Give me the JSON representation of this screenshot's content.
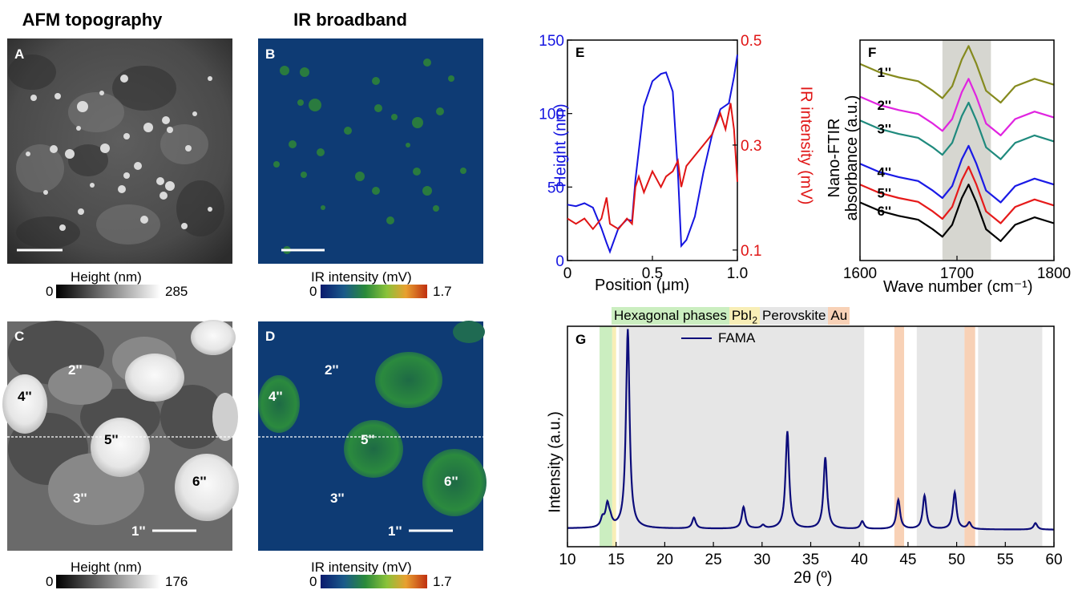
{
  "titles": {
    "afm": "AFM topography",
    "ir": "IR broadband"
  },
  "panels": {
    "a": "A",
    "b": "B",
    "c": "C",
    "d": "D",
    "e": "E",
    "f": "F",
    "g": "G"
  },
  "colorbars": {
    "a": {
      "title": "Height (nm)",
      "min": "0",
      "max": "285"
    },
    "b": {
      "title": "IR intensity (mV)",
      "min": "0",
      "max": "1.7"
    },
    "c": {
      "title": "Height (nm)",
      "min": "0",
      "max": "176"
    },
    "d": {
      "title": "IR intensity (mV)",
      "min": "0",
      "max": "1.7"
    }
  },
  "grain_labels": [
    "1''",
    "2''",
    "3''",
    "4''",
    "5''",
    "6''"
  ],
  "colors": {
    "height": "#1515e0",
    "ir": "#e01515",
    "fama": "#0c0c7a",
    "ir_map_bg": "#0d3d6d",
    "ir_map_grain": "#2d8a3d"
  },
  "chart_data": [
    {
      "panel": "E",
      "type": "line",
      "xlabel": "Position (μm)",
      "ylabel": "Height (nm)",
      "y2label": "IR intensity (mV)",
      "xlim": [
        0,
        1.0
      ],
      "ylim": [
        0,
        150
      ],
      "y2lim": [
        0.08,
        0.5
      ],
      "xticks": [
        "0",
        "0.5",
        "1.0"
      ],
      "yticks": [
        "0",
        "50",
        "100",
        "150"
      ],
      "y2ticks": [
        "0.1",
        "0.3",
        "0.5"
      ],
      "series": [
        {
          "axis": "left",
          "color": "#1515e0",
          "x": [
            0,
            0.05,
            0.1,
            0.15,
            0.2,
            0.23,
            0.25,
            0.3,
            0.35,
            0.38,
            0.4,
            0.45,
            0.5,
            0.55,
            0.58,
            0.62,
            0.65,
            0.67,
            0.7,
            0.75,
            0.8,
            0.85,
            0.9,
            0.95,
            0.98,
            1.0
          ],
          "y": [
            38,
            37,
            39,
            36,
            22,
            12,
            6,
            22,
            28,
            27,
            55,
            105,
            122,
            127,
            128,
            115,
            60,
            10,
            14,
            30,
            60,
            85,
            103,
            107,
            125,
            140
          ]
        },
        {
          "axis": "right",
          "color": "#e01515",
          "x": [
            0,
            0.05,
            0.1,
            0.15,
            0.2,
            0.23,
            0.25,
            0.3,
            0.35,
            0.38,
            0.4,
            0.42,
            0.45,
            0.5,
            0.55,
            0.58,
            0.62,
            0.65,
            0.67,
            0.7,
            0.75,
            0.8,
            0.85,
            0.9,
            0.93,
            0.96,
            0.98,
            1.0
          ],
          "y": [
            0.16,
            0.15,
            0.16,
            0.14,
            0.16,
            0.2,
            0.15,
            0.14,
            0.16,
            0.15,
            0.22,
            0.24,
            0.21,
            0.25,
            0.22,
            0.24,
            0.25,
            0.27,
            0.22,
            0.26,
            0.28,
            0.3,
            0.32,
            0.36,
            0.33,
            0.38,
            0.33,
            0.23
          ]
        }
      ]
    },
    {
      "panel": "F",
      "type": "line",
      "xlabel": "Wave number (cm⁻¹)",
      "ylabel": "Nano-FTIR absorbance (a.u.)",
      "xlim": [
        1600,
        1800
      ],
      "xticks": [
        "1600",
        "1700",
        "1800"
      ],
      "shaded_band": [
        1685,
        1735
      ],
      "series": [
        {
          "name": "1''",
          "color": "#858a1e",
          "offset": 5.0
        },
        {
          "name": "2''",
          "color": "#e024e0",
          "offset": 3.9
        },
        {
          "name": "3''",
          "color": "#1f8a7d",
          "offset": 3.1
        },
        {
          "name": "4''",
          "color": "#1a1ae6",
          "offset": 1.65
        },
        {
          "name": "5''",
          "color": "#e61a1a",
          "offset": 0.95
        },
        {
          "name": "6''",
          "color": "#000000",
          "offset": 0.35
        }
      ],
      "x": [
        1600,
        1620,
        1640,
        1660,
        1675,
        1685,
        1695,
        1705,
        1712,
        1720,
        1730,
        1745,
        1760,
        1780,
        1800
      ],
      "y_shape": [
        1.0,
        0.72,
        0.55,
        0.42,
        0.1,
        -0.15,
        0.25,
        1.15,
        1.6,
        1.0,
        0.1,
        -0.3,
        0.25,
        0.5,
        0.3
      ]
    },
    {
      "panel": "G",
      "type": "line",
      "xlabel": "2θ (º)",
      "ylabel": "Intensity (a.u.)",
      "xlim": [
        10,
        60
      ],
      "xticks": [
        "10",
        "15",
        "20",
        "25",
        "30",
        "35",
        "40",
        "45",
        "50",
        "55",
        "60"
      ],
      "legend": [
        "FAMA"
      ],
      "phase_labels": [
        "Hexagonal phases",
        "PbI",
        "Perovskite",
        "Au"
      ],
      "phase_colors": {
        "Hexagonal phases": "#cbeec0",
        "PbI": "#f8eeb6",
        "Perovskite": "#e6e6e6",
        "Au": "#f8d1b6"
      },
      "bands": [
        {
          "phase": "Hexagonal phases",
          "range": [
            13.3,
            14.6
          ]
        },
        {
          "phase": "PbI",
          "range": [
            14.6,
            15.0
          ]
        },
        {
          "phase": "Perovskite",
          "range": [
            15.3,
            40.5
          ]
        },
        {
          "phase": "Au",
          "range": [
            43.6,
            44.6
          ]
        },
        {
          "phase": "Perovskite",
          "range": [
            45.9,
            50.8
          ]
        },
        {
          "phase": "Au",
          "range": [
            50.8,
            51.9
          ]
        },
        {
          "phase": "Perovskite",
          "range": [
            52.2,
            58.8
          ]
        }
      ],
      "peaks": [
        {
          "x": 13.6,
          "h": 4
        },
        {
          "x": 14.1,
          "h": 10
        },
        {
          "x": 14.4,
          "h": 3
        },
        {
          "x": 16.2,
          "h": 92
        },
        {
          "x": 23.0,
          "h": 5
        },
        {
          "x": 28.1,
          "h": 10
        },
        {
          "x": 30.1,
          "h": 1.5
        },
        {
          "x": 32.6,
          "h": 45
        },
        {
          "x": 36.5,
          "h": 33
        },
        {
          "x": 40.3,
          "h": 3.5
        },
        {
          "x": 44.0,
          "h": 13.5
        },
        {
          "x": 46.7,
          "h": 15.5
        },
        {
          "x": 49.8,
          "h": 17
        },
        {
          "x": 51.3,
          "h": 3
        },
        {
          "x": 58.1,
          "h": 3
        }
      ]
    }
  ]
}
